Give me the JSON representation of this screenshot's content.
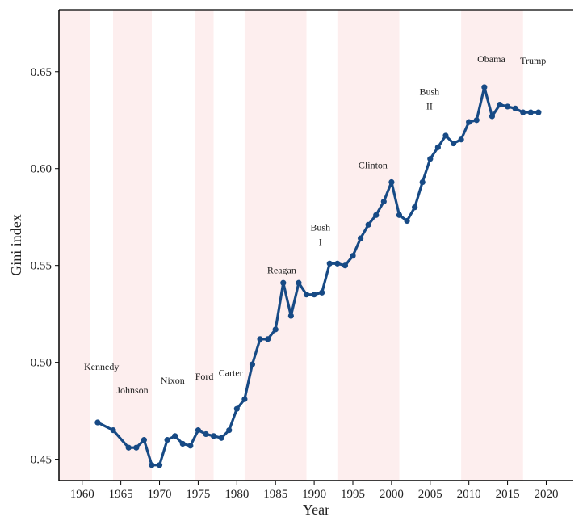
{
  "chart_data": {
    "type": "line",
    "xlabel": "Year",
    "ylabel": "Gini index",
    "xlim": [
      1957,
      2023.5
    ],
    "ylim": [
      0.439,
      0.682
    ],
    "x_ticks": [
      1960,
      1965,
      1970,
      1975,
      1980,
      1985,
      1990,
      1995,
      2000,
      2005,
      2010,
      2015,
      2020
    ],
    "y_ticks": [
      0.45,
      0.5,
      0.55,
      0.6,
      0.65
    ],
    "y_tick_labels": [
      "0.45",
      "0.50",
      "0.55",
      "0.60",
      "0.65"
    ],
    "grid": false,
    "line_color": "#174a85",
    "shade_color": "#fdeeee",
    "series": [
      {
        "x": [
          1962,
          1964,
          1966,
          1967,
          1968,
          1969,
          1970,
          1971,
          1972,
          1973,
          1974,
          1975,
          1976,
          1977,
          1978,
          1979,
          1980,
          1981,
          1982,
          1983,
          1984,
          1985,
          1986,
          1987,
          1988,
          1989,
          1990,
          1991,
          1992,
          1993,
          1994,
          1995,
          1996,
          1997,
          1998,
          1999,
          2000,
          2001,
          2002,
          2003,
          2004,
          2005,
          2006,
          2007,
          2008,
          2009,
          2010,
          2011,
          2012,
          2013,
          2014,
          2015,
          2016,
          2017,
          2018,
          2019
        ],
        "y": [
          0.469,
          0.465,
          0.456,
          0.456,
          0.46,
          0.447,
          0.447,
          0.46,
          0.462,
          0.458,
          0.457,
          0.465,
          0.463,
          0.462,
          0.461,
          0.465,
          0.476,
          0.481,
          0.499,
          0.512,
          0.512,
          0.517,
          0.541,
          0.524,
          0.541,
          0.535,
          0.535,
          0.536,
          0.551,
          0.551,
          0.55,
          0.555,
          0.564,
          0.571,
          0.576,
          0.583,
          0.593,
          0.576,
          0.573,
          0.58,
          0.593,
          0.605,
          0.611,
          0.617,
          0.613,
          0.615,
          0.624,
          0.625,
          0.642,
          0.627,
          0.633,
          0.632,
          0.631,
          0.629,
          0.629,
          0.629
        ]
      }
    ],
    "shaded_periods": [
      [
        1957,
        1961
      ],
      [
        1964,
        1969
      ],
      [
        1974.6,
        1977
      ],
      [
        1981,
        1989
      ],
      [
        1993,
        2001
      ],
      [
        2009,
        2017
      ]
    ],
    "presidents": [
      {
        "lines": [
          "Kennedy"
        ],
        "x": 1962.5,
        "y": 0.496
      },
      {
        "lines": [
          "Johnson"
        ],
        "x": 1966.5,
        "y": 0.484
      },
      {
        "lines": [
          "Nixon"
        ],
        "x": 1971.7,
        "y": 0.489
      },
      {
        "lines": [
          "Ford"
        ],
        "x": 1975.8,
        "y": 0.491
      },
      {
        "lines": [
          "Carter"
        ],
        "x": 1979.2,
        "y": 0.493
      },
      {
        "lines": [
          "Reagan"
        ],
        "x": 1985.8,
        "y": 0.546
      },
      {
        "lines": [
          "Bush",
          "I"
        ],
        "x": 1990.8,
        "y": 0.568
      },
      {
        "lines": [
          "Clinton"
        ],
        "x": 1997.6,
        "y": 0.6
      },
      {
        "lines": [
          "Bush",
          "II"
        ],
        "x": 2004.9,
        "y": 0.638
      },
      {
        "lines": [
          "Obama"
        ],
        "x": 2012.9,
        "y": 0.655
      },
      {
        "lines": [
          "Trump"
        ],
        "x": 2018.3,
        "y": 0.654
      }
    ]
  }
}
